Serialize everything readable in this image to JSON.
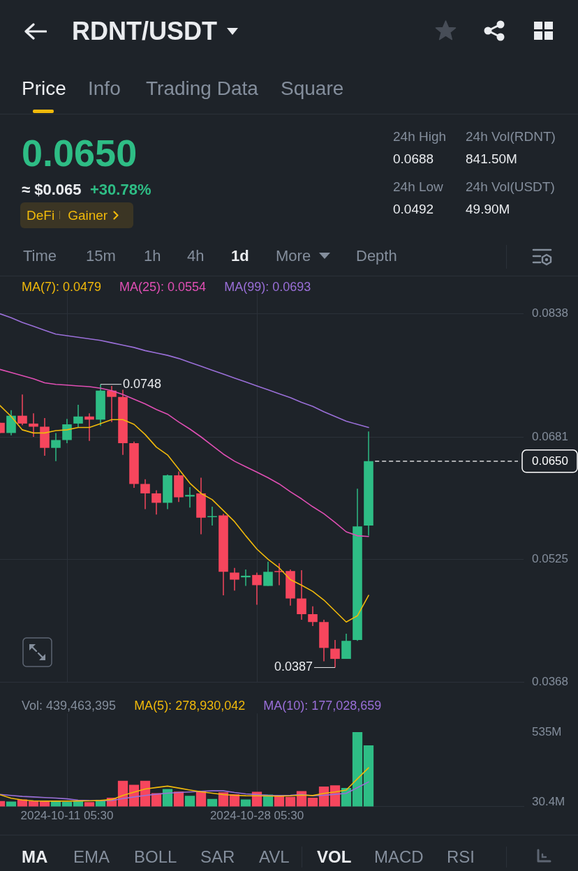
{
  "chart_data": [
    {
      "type": "other",
      "title": "RDNT/USDT",
      "annotations": [
        "Price",
        "Info",
        "Trading Data",
        "Square",
        "0.0650",
        "≈ $0.065",
        "+30.78%",
        "DeFi",
        "Gainer",
        "24h High",
        "0.0688",
        "24h Vol(RDNT)",
        "841.50M",
        "24h Low",
        "0.0492",
        "24h Vol(USDT)",
        "49.90M",
        "Time",
        "15m",
        "1h",
        "4h",
        "1d",
        "More",
        "Depth"
      ]
    },
    {
      "type": "candlestick",
      "x": [
        "2024-10-05T05:30",
        "2024-10-06T05:30",
        "2024-10-07T05:30",
        "2024-10-08T05:30",
        "2024-10-09T05:30",
        "2024-10-10T05:30",
        "2024-10-11T05:30",
        "2024-10-12T05:30",
        "2024-10-13T05:30",
        "2024-10-14T05:30",
        "2024-10-15T05:30",
        "2024-10-16T05:30",
        "2024-10-17T05:30",
        "2024-10-18T05:30",
        "2024-10-19T05:30",
        "2024-10-20T05:30",
        "2024-10-21T05:30",
        "2024-10-22T05:30",
        "2024-10-23T05:30",
        "2024-10-24T05:30",
        "2024-10-25T05:30",
        "2024-10-26T05:30",
        "2024-10-27T05:30",
        "2024-10-28T05:30",
        "2024-10-29T05:30",
        "2024-10-30T05:30",
        "2024-10-31T05:30",
        "2024-11-01T05:30",
        "2024-11-02T05:30",
        "2024-11-03T05:30",
        "2024-11-04T05:30",
        "2024-11-05T05:30",
        "2024-11-06T05:30",
        "2024-11-07T05:30"
      ],
      "ohlc": [
        [
          0.0699,
          0.0699,
          0.0686,
          0.0686
        ],
        [
          0.0686,
          0.0715,
          0.0683,
          0.0708
        ],
        [
          0.0708,
          0.0735,
          0.0696,
          0.0698
        ],
        [
          0.0698,
          0.0711,
          0.0681,
          0.0694
        ],
        [
          0.0694,
          0.0705,
          0.0657,
          0.0667
        ],
        [
          0.0667,
          0.0686,
          0.065,
          0.0677
        ],
        [
          0.0677,
          0.0704,
          0.0673,
          0.0697
        ],
        [
          0.0698,
          0.0722,
          0.0693,
          0.0707
        ],
        [
          0.0707,
          0.0711,
          0.0676,
          0.0703
        ],
        [
          0.0703,
          0.0748,
          0.0695,
          0.074
        ],
        [
          0.074,
          0.0746,
          0.07,
          0.0732
        ],
        [
          0.0732,
          0.0741,
          0.0658,
          0.0673
        ],
        [
          0.0673,
          0.0675,
          0.0616,
          0.0621
        ],
        [
          0.0621,
          0.0627,
          0.0589,
          0.0609
        ],
        [
          0.0609,
          0.0613,
          0.0582,
          0.0597
        ],
        [
          0.0597,
          0.0633,
          0.0589,
          0.0632
        ],
        [
          0.0632,
          0.0637,
          0.0598,
          0.0604
        ],
        [
          0.0605,
          0.0617,
          0.0591,
          0.0607
        ],
        [
          0.0609,
          0.0629,
          0.0557,
          0.0578
        ],
        [
          0.0579,
          0.0592,
          0.0568,
          0.058
        ],
        [
          0.0581,
          0.0583,
          0.0479,
          0.0509
        ],
        [
          0.0508,
          0.0514,
          0.0485,
          0.0499
        ],
        [
          0.0502,
          0.0512,
          0.0491,
          0.0504
        ],
        [
          0.0505,
          0.0508,
          0.0467,
          0.0492
        ],
        [
          0.0491,
          0.0522,
          0.0491,
          0.0509
        ],
        [
          0.051,
          0.052,
          0.0492,
          0.0509
        ],
        [
          0.051,
          0.0512,
          0.0466,
          0.0475
        ],
        [
          0.0475,
          0.0511,
          0.0448,
          0.0455
        ],
        [
          0.0455,
          0.0465,
          0.044,
          0.0445
        ],
        [
          0.0445,
          0.0448,
          0.0395,
          0.0412
        ],
        [
          0.0411,
          0.0422,
          0.0387,
          0.0398
        ],
        [
          0.0398,
          0.043,
          0.0398,
          0.0421
        ],
        [
          0.0422,
          0.0615,
          0.0421,
          0.0567
        ],
        [
          0.0568,
          0.0688,
          0.0555,
          0.065
        ]
      ],
      "colors": [
        "#f6465d",
        "#2ebd85",
        "#f6465d",
        "#f6465d",
        "#f6465d",
        "#2ebd85",
        "#2ebd85",
        "#2ebd85",
        "#f6465d",
        "#2ebd85",
        "#f6465d",
        "#f6465d",
        "#f6465d",
        "#f6465d",
        "#f6465d",
        "#2ebd85",
        "#f6465d",
        "#2ebd85",
        "#f6465d",
        "#2ebd85",
        "#f6465d",
        "#f6465d",
        "#2ebd85",
        "#f6465d",
        "#2ebd85",
        "#f6465d",
        "#f6465d",
        "#f6465d",
        "#f6465d",
        "#f6465d",
        "#f6465d",
        "#2ebd85",
        "#2ebd85",
        "#2ebd85"
      ],
      "series": [
        {
          "type": "line",
          "name": "MA(7): 0.0479",
          "color": "#f0b90b",
          "values": [
            0.0721,
            0.0707,
            0.069,
            0.0686,
            0.0686,
            0.0689,
            0.069,
            0.0693,
            0.0693,
            0.0698,
            0.0703,
            0.0703,
            0.0697,
            0.0684,
            0.0668,
            0.0658,
            0.064,
            0.0622,
            0.0609,
            0.0601,
            0.0587,
            0.0573,
            0.0555,
            0.0538,
            0.0525,
            0.0514,
            0.0499,
            0.0492,
            0.0484,
            0.0473,
            0.0459,
            0.0445,
            0.0453,
            0.0479
          ]
        },
        {
          "type": "line",
          "name": "MA(25): 0.0554",
          "color": "#e04fb4",
          "values": [
            0.0767,
            0.0763,
            0.0759,
            0.0755,
            0.075,
            0.0748,
            0.0747,
            0.0746,
            0.0745,
            0.0743,
            0.074,
            0.0735,
            0.0729,
            0.0723,
            0.0716,
            0.071,
            0.07,
            0.0691,
            0.0681,
            0.067,
            0.0659,
            0.065,
            0.0643,
            0.0636,
            0.0629,
            0.0621,
            0.0611,
            0.0602,
            0.0592,
            0.0583,
            0.0572,
            0.056,
            0.0555,
            0.0554
          ]
        },
        {
          "type": "line",
          "name": "MA(99): 0.0693",
          "color": "#9a6fd8",
          "values": [
            0.0838,
            0.0833,
            0.0827,
            0.0822,
            0.0817,
            0.0812,
            0.081,
            0.0808,
            0.0806,
            0.0804,
            0.0801,
            0.0798,
            0.0795,
            0.0791,
            0.0788,
            0.0785,
            0.0781,
            0.0776,
            0.0771,
            0.0766,
            0.0761,
            0.0756,
            0.0751,
            0.0746,
            0.0741,
            0.0736,
            0.0731,
            0.0725,
            0.072,
            0.0713,
            0.0707,
            0.0701,
            0.0697,
            0.0693
          ]
        }
      ],
      "xlim": [
        "2024-10-05T05:30",
        "2024-11-21T02:30"
      ],
      "ylim": [
        0.0368,
        0.0865
      ],
      "xticks": [
        {
          "value": "2024-10-11T05:30",
          "label": null
        },
        {
          "value": "2024-10-28T05:30",
          "label": null
        }
      ],
      "yticks": [
        0.0838,
        0.0681,
        {
          "value": 0.065,
          "label": "0.0650"
        },
        0.0525,
        0.0368
      ],
      "grid": true,
      "legend": "top left",
      "tick_labels": "y",
      "ref_lines": [
        {
          "axis": "y",
          "value": 0.065,
          "color": "#ffffff",
          "line_style": "dashed"
        }
      ],
      "annotations": [
        {
          "text": "0.0748",
          "x": "2024-10-14T05:30",
          "y": 0.0748
        },
        {
          "text": "0.0387",
          "x": "2024-11-04T05:30",
          "y": 0.0387
        }
      ]
    },
    {
      "type": "bar",
      "x": [
        "2024-10-05T05:30",
        "2024-10-06T05:30",
        "2024-10-07T05:30",
        "2024-10-08T05:30",
        "2024-10-09T05:30",
        "2024-10-10T05:30",
        "2024-10-11T05:30",
        "2024-10-12T05:30",
        "2024-10-13T05:30",
        "2024-10-14T05:30",
        "2024-10-15T05:30",
        "2024-10-16T05:30",
        "2024-10-17T05:30",
        "2024-10-18T05:30",
        "2024-10-19T05:30",
        "2024-10-20T05:30",
        "2024-10-21T05:30",
        "2024-10-22T05:30",
        "2024-10-23T05:30",
        "2024-10-24T05:30",
        "2024-10-25T05:30",
        "2024-10-26T05:30",
        "2024-10-27T05:30",
        "2024-10-28T05:30",
        "2024-10-29T05:30",
        "2024-10-30T05:30",
        "2024-10-31T05:30",
        "2024-11-01T05:30",
        "2024-11-02T05:30",
        "2024-11-03T05:30",
        "2024-11-04T05:30",
        "2024-11-05T05:30",
        "2024-11-06T05:30",
        "2024-11-07T05:30"
      ],
      "series": [
        {
          "type": "bar",
          "colors": [
            "#f6465d",
            "#2ebd85",
            "#f6465d",
            "#f6465d",
            "#f6465d",
            "#2ebd85",
            "#2ebd85",
            "#2ebd85",
            "#f6465d",
            "#2ebd85",
            "#f6465d",
            "#f6465d",
            "#f6465d",
            "#f6465d",
            "#f6465d",
            "#2ebd85",
            "#f6465d",
            "#2ebd85",
            "#f6465d",
            "#2ebd85",
            "#f6465d",
            "#f6465d",
            "#2ebd85",
            "#f6465d",
            "#2ebd85",
            "#f6465d",
            "#f6465d",
            "#f6465d",
            "#f6465d",
            "#f6465d",
            "#f6465d",
            "#2ebd85",
            "#2ebd85",
            "#2ebd85"
          ],
          "values": [
            38,
            34,
            49,
            38,
            38,
            38,
            31,
            38,
            30,
            46,
            62,
            184,
            155,
            184,
            94,
            125,
            106,
            75,
            112,
            53,
            101,
            87,
            49,
            104,
            84,
            73,
            68,
            109,
            62,
            142,
            151,
            132,
            535,
            439
          ]
        },
        {
          "type": "line",
          "name": "MA(5): 278,930,042",
          "color": "#f0b90b",
          "values": [
            85,
            60,
            47,
            41,
            39,
            39,
            39,
            40,
            41,
            44,
            50,
            80,
            104,
            126,
            137,
            147,
            133,
            119,
            106,
            96,
            86,
            81,
            78,
            77,
            76,
            75,
            77,
            82,
            79,
            95,
            105,
            119,
            200,
            279
          ]
        },
        {
          "type": "line",
          "name": "MA(10): 177,028,659",
          "color": "#9a6fd8",
          "values": [
            87,
            80,
            73,
            69,
            65,
            61,
            55,
            46,
            43,
            42,
            43,
            57,
            69,
            80,
            89,
            96,
            101,
            105,
            110,
            113,
            113,
            101,
            91,
            86,
            81,
            80,
            81,
            87,
            77,
            81,
            88,
            95,
            136,
            177
          ]
        }
      ],
      "xlim": [
        "2024-10-05T05:30",
        "2024-11-21T02:30"
      ],
      "ylim": [
        0,
        671
      ],
      "xticks": [
        {
          "value": "2024-10-11T05:30",
          "label": "2024-10-11 05:30"
        },
        {
          "value": "2024-10-28T05:30",
          "label": "2024-10-28 05:30"
        }
      ],
      "yticks": [
        {
          "value": 535,
          "label": "535M"
        },
        {
          "value": 30.4,
          "label": "30.4M"
        }
      ],
      "grid": "x",
      "legend": "top left",
      "annotations": [
        "Vol: 439,463,395"
      ]
    },
    {
      "type": "other",
      "annotations": [
        "MA",
        "EMA",
        "BOLL",
        "SAR",
        "AVL",
        "VOL",
        "MACD",
        "RSI"
      ]
    }
  ]
}
